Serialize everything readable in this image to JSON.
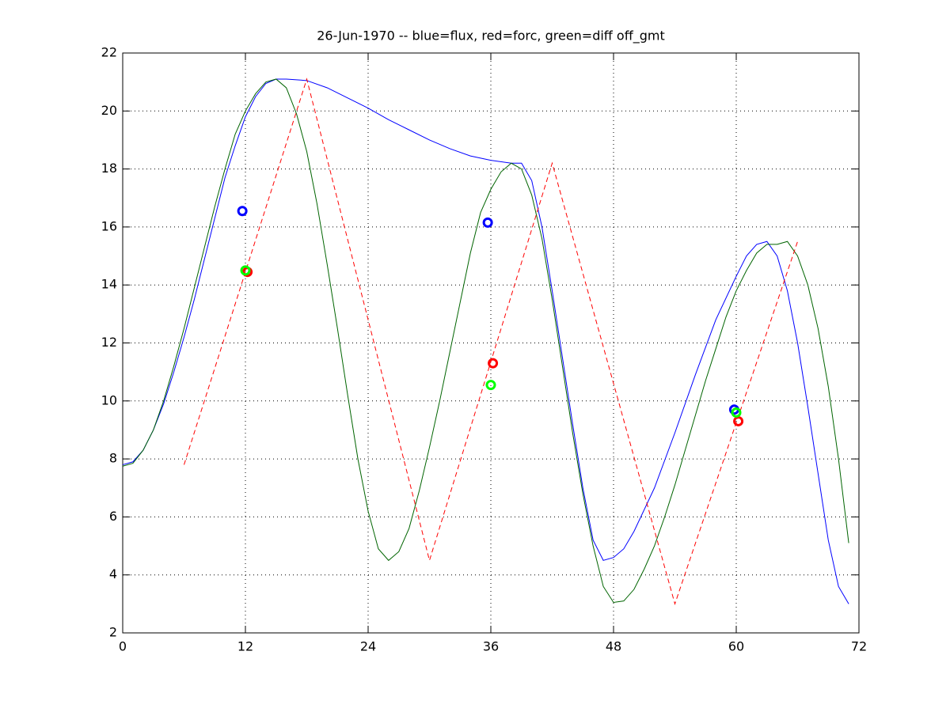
{
  "chart_data": {
    "type": "line",
    "title": "26-Jun-1970 -- blue=flux, red=forc, green=diff off_gmt",
    "xlim": [
      0,
      72
    ],
    "xticks": [
      0,
      12,
      24,
      36,
      48,
      60,
      72
    ],
    "ylim": [
      2,
      22
    ],
    "yticks": [
      2,
      4,
      6,
      8,
      10,
      12,
      14,
      16,
      18,
      20,
      22
    ],
    "grid": true,
    "series": [
      {
        "color": "#0000ff",
        "line": "solid",
        "x": [
          0,
          1,
          2,
          3,
          4,
          5,
          6,
          7,
          8,
          9,
          10,
          11,
          12,
          13,
          14,
          15,
          16,
          18,
          20,
          22,
          24,
          26,
          28,
          30,
          32,
          34,
          36,
          38,
          39,
          40,
          41,
          42,
          43,
          44,
          45,
          46,
          47,
          48,
          49,
          50,
          52,
          54,
          56,
          58,
          60,
          61,
          62,
          63,
          64,
          65,
          66,
          67,
          68,
          69,
          70,
          71
        ],
        "values": [
          7.8,
          7.9,
          8.3,
          9.0,
          9.9,
          11.0,
          12.2,
          13.5,
          14.9,
          16.3,
          17.7,
          18.8,
          19.8,
          20.5,
          20.95,
          21.1,
          21.1,
          21.05,
          20.8,
          20.45,
          20.1,
          19.7,
          19.35,
          19.0,
          18.7,
          18.45,
          18.3,
          18.2,
          18.2,
          17.6,
          16.0,
          13.8,
          11.5,
          9.2,
          7.0,
          5.2,
          4.5,
          4.6,
          4.9,
          5.5,
          7.0,
          8.9,
          10.9,
          12.8,
          14.3,
          15.0,
          15.4,
          15.5,
          15.0,
          13.8,
          12.0,
          9.8,
          7.5,
          5.2,
          3.6,
          3.0
        ]
      },
      {
        "color": "#006400",
        "line": "solid",
        "x": [
          0,
          1,
          2,
          3,
          4,
          5,
          6,
          7,
          8,
          9,
          10,
          11,
          12,
          13,
          14,
          15,
          16,
          17,
          18,
          19,
          20,
          21,
          22,
          23,
          24,
          25,
          26,
          27,
          28,
          29,
          30,
          31,
          32,
          33,
          34,
          35,
          36,
          37,
          38,
          39,
          40,
          41,
          42,
          43,
          44,
          45,
          46,
          47,
          48,
          49,
          50,
          51,
          52,
          53,
          54,
          55,
          56,
          57,
          58,
          59,
          60,
          61,
          62,
          63,
          64,
          65,
          66,
          67,
          68,
          69,
          70,
          71
        ],
        "values": [
          7.75,
          7.85,
          8.3,
          9.0,
          10.0,
          11.2,
          12.5,
          13.9,
          15.3,
          16.7,
          18.0,
          19.2,
          20.0,
          20.6,
          21.0,
          21.1,
          20.8,
          19.9,
          18.6,
          16.8,
          14.7,
          12.5,
          10.2,
          8.0,
          6.2,
          4.9,
          4.5,
          4.8,
          5.6,
          6.9,
          8.4,
          10.0,
          11.7,
          13.4,
          15.1,
          16.5,
          17.3,
          17.9,
          18.2,
          18.0,
          17.1,
          15.6,
          13.5,
          11.2,
          8.9,
          6.8,
          5.0,
          3.6,
          3.05,
          3.1,
          3.5,
          4.2,
          5.0,
          6.0,
          7.1,
          8.3,
          9.5,
          10.7,
          11.8,
          12.9,
          13.8,
          14.5,
          15.1,
          15.4,
          15.4,
          15.5,
          15.0,
          14.0,
          12.5,
          10.5,
          8.0,
          5.1
        ]
      },
      {
        "color": "#ff0000",
        "line": "dashed",
        "x": [
          6,
          18,
          30,
          42,
          54,
          66
        ],
        "values": [
          7.8,
          21.1,
          4.5,
          18.2,
          3.0,
          15.5
        ]
      },
      {
        "color": "#0000ff",
        "line": "none",
        "marker": "o",
        "x": [
          11.7,
          35.7,
          59.8
        ],
        "values": [
          16.55,
          16.15,
          9.7
        ]
      },
      {
        "color": "#ff0000",
        "line": "none",
        "marker": "o",
        "x": [
          12.2,
          36.2,
          60.2
        ],
        "values": [
          14.45,
          11.3,
          9.3
        ]
      },
      {
        "color": "#00ff00",
        "line": "none",
        "marker": "o",
        "x": [
          12.0,
          36.0,
          60.0
        ],
        "values": [
          14.5,
          10.55,
          9.6
        ]
      }
    ]
  }
}
